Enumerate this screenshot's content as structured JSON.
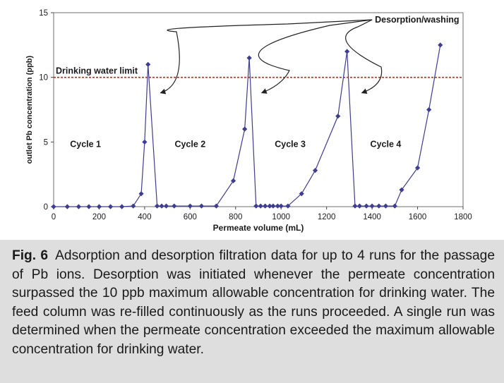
{
  "chart_data": {
    "type": "line",
    "xlabel": "Permeate volume (mL)",
    "ylabel": "outlet Pb concentration (ppb)",
    "xlim": [
      0,
      1800
    ],
    "ylim": [
      0,
      15
    ],
    "xticks": [
      0,
      200,
      400,
      600,
      800,
      1000,
      1200,
      1400,
      1600,
      1800
    ],
    "yticks": [
      0,
      5,
      10,
      15
    ],
    "grid": false,
    "series_color": "#3e3d8f",
    "limit_line": {
      "value": 10,
      "label": "Drinking water limit",
      "color": "#cc1f1f"
    },
    "cycle_labels": [
      {
        "text": "Cycle 1",
        "x": 140,
        "y": 4.6
      },
      {
        "text": "Cycle 2",
        "x": 600,
        "y": 4.6
      },
      {
        "text": "Cycle 3",
        "x": 1040,
        "y": 4.6
      },
      {
        "text": "Cycle 4",
        "x": 1460,
        "y": 4.6
      }
    ],
    "annotation": {
      "text": "Desorption/washing",
      "arrow_targets": [
        {
          "x": 445,
          "y": 8.8
        },
        {
          "x": 890,
          "y": 8.8
        },
        {
          "x": 1330,
          "y": 8.8
        }
      ]
    },
    "series": [
      {
        "values": [
          [
            0,
            0
          ],
          [
            60,
            0
          ],
          [
            110,
            0
          ],
          [
            155,
            0
          ],
          [
            200,
            0
          ],
          [
            250,
            0
          ],
          [
            300,
            0
          ],
          [
            350,
            0.05
          ],
          [
            385,
            1
          ],
          [
            400,
            5
          ],
          [
            415,
            11
          ],
          [
            455,
            0.05
          ],
          [
            475,
            0.05
          ],
          [
            495,
            0.05
          ],
          [
            530,
            0.05
          ],
          [
            600,
            0.05
          ],
          [
            650,
            0.05
          ],
          [
            715,
            0.05
          ],
          [
            790,
            2
          ],
          [
            840,
            6
          ],
          [
            860,
            11.5
          ],
          [
            890,
            0.05
          ],
          [
            910,
            0.05
          ],
          [
            930,
            0.05
          ],
          [
            950,
            0.05
          ],
          [
            965,
            0.05
          ],
          [
            985,
            0.05
          ],
          [
            1000,
            0.05
          ],
          [
            1030,
            0.05
          ],
          [
            1090,
            1
          ],
          [
            1150,
            2.8
          ],
          [
            1250,
            7
          ],
          [
            1290,
            12
          ],
          [
            1325,
            0.05
          ],
          [
            1345,
            0.05
          ],
          [
            1375,
            0.05
          ],
          [
            1400,
            0.05
          ],
          [
            1430,
            0.05
          ],
          [
            1460,
            0.05
          ],
          [
            1500,
            0.05
          ],
          [
            1530,
            1.3
          ],
          [
            1600,
            3
          ],
          [
            1650,
            7.5
          ],
          [
            1700,
            12.5
          ]
        ]
      }
    ]
  },
  "caption": {
    "label": "Fig. 6",
    "text": "Adsorption and desorption filtration data for up to 4 runs for the passage of Pb ions. Desorption was initiated whenever the permeate concentration surpassed the 10 ppb maximum allowable concentration for drinking water. The feed column was re-filled continuously as the runs proceeded. A single run was determined when the permeate concentration exceeded the maximum allowable concentration for drinking water."
  }
}
